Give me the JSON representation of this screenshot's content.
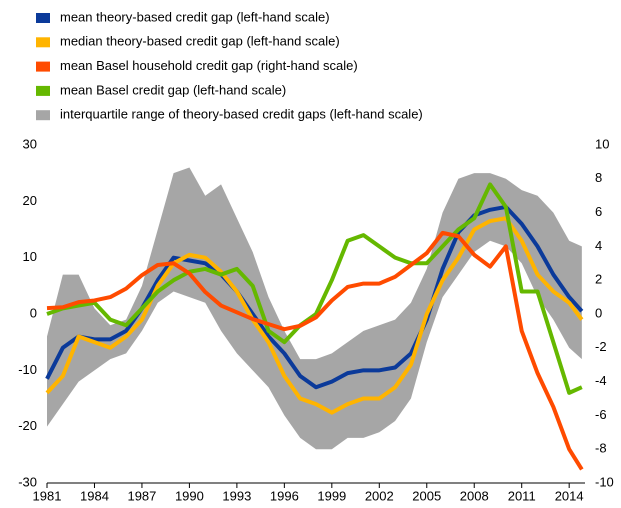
{
  "chart_data": {
    "type": "line",
    "x": [
      1981,
      1982,
      1983,
      1984,
      1985,
      1986,
      1987,
      1988,
      1989,
      1990,
      1991,
      1992,
      1993,
      1994,
      1995,
      1996,
      1997,
      1998,
      1999,
      2000,
      2001,
      2002,
      2003,
      2004,
      2005,
      2006,
      2007,
      2008,
      2009,
      2010,
      2011,
      2012,
      2013,
      2014,
      2014.8
    ],
    "xlim": [
      1981,
      2015
    ],
    "xticks": [
      1981,
      1984,
      1987,
      1990,
      1993,
      1996,
      1999,
      2002,
      2005,
      2008,
      2011,
      2014
    ],
    "ylim": [
      -30,
      30
    ],
    "yticks": [
      -30,
      -20,
      -10,
      0,
      10,
      20,
      30
    ],
    "y2lim": [
      -10,
      10
    ],
    "y2ticks": [
      -10,
      -8,
      -6,
      -4,
      -2,
      0,
      2,
      4,
      6,
      8,
      10
    ],
    "band": {
      "name": "interquartile range of theory-based credit gaps (left-hand scale)",
      "color": "#a6a6a6",
      "low": [
        -20,
        -16,
        -12,
        -10,
        -8,
        -7,
        -3,
        2,
        4,
        3,
        2,
        -3,
        -7,
        -10,
        -13,
        -18,
        -22,
        -24,
        -24,
        -22,
        -22,
        -21,
        -19,
        -15,
        -5,
        3,
        7,
        11,
        13,
        12,
        9,
        3,
        -1,
        -6,
        -8
      ],
      "high": [
        -4,
        7,
        7,
        1,
        -2,
        -1,
        5,
        15,
        25,
        26,
        21,
        23,
        17,
        11,
        3,
        -3,
        -8,
        -8,
        -7,
        -5,
        -3,
        -2,
        -1,
        2,
        8,
        18,
        24,
        25,
        25,
        24,
        22,
        21,
        18,
        13,
        12
      ]
    },
    "series": [
      {
        "name": "mean theory-based credit gap (left-hand scale)",
        "color": "#0b3a9a",
        "values": [
          -11.5,
          -6,
          -4,
          -4.5,
          -4.5,
          -3,
          1,
          6,
          10,
          9.5,
          9,
          7,
          4,
          0,
          -4,
          -7,
          -11,
          -13,
          -12,
          -10.5,
          -10,
          -10,
          -9.5,
          -7,
          -1,
          8,
          14.5,
          17.5,
          18.5,
          19,
          16,
          12,
          7,
          3,
          0.5
        ]
      },
      {
        "name": "median theory-based credit gap (left-hand scale)",
        "color": "#ffb400",
        "values": [
          -14,
          -11,
          -4,
          -5,
          -6,
          -4,
          -1,
          5,
          9,
          10.5,
          10,
          7.5,
          4,
          -1,
          -5,
          -11,
          -15,
          -16,
          -17.5,
          -16,
          -15,
          -15,
          -13,
          -9,
          0,
          6,
          10,
          15,
          16.5,
          17,
          13,
          7,
          4,
          2,
          -1
        ]
      },
      {
        "name": "mean Basel household credit gap (right-hand scale)",
        "color": "#ff4b00",
        "axis": "y2",
        "values": [
          0.35,
          0.4,
          0.7,
          0.8,
          1.0,
          1.5,
          2.3,
          2.9,
          3.0,
          2.4,
          1.3,
          0.5,
          0.1,
          -0.3,
          -0.6,
          -0.9,
          -0.7,
          -0.2,
          0.8,
          1.6,
          1.8,
          1.8,
          2.2,
          2.9,
          3.6,
          4.8,
          4.6,
          3.5,
          2.8,
          4.0,
          -1.0,
          -3.5,
          -5.5,
          -8.0,
          -9.2
        ]
      },
      {
        "name": "mean Basel credit gap (left-hand scale)",
        "color": "#65b800",
        "values": [
          0,
          1,
          1.5,
          2,
          -1,
          -2,
          1,
          4,
          6,
          7.5,
          8,
          7,
          8,
          5,
          -3,
          -5,
          -2,
          0,
          6,
          13,
          14,
          12,
          10,
          9,
          9,
          12,
          15,
          17,
          23,
          19,
          4,
          4,
          -5,
          -14,
          -13
        ]
      }
    ]
  }
}
